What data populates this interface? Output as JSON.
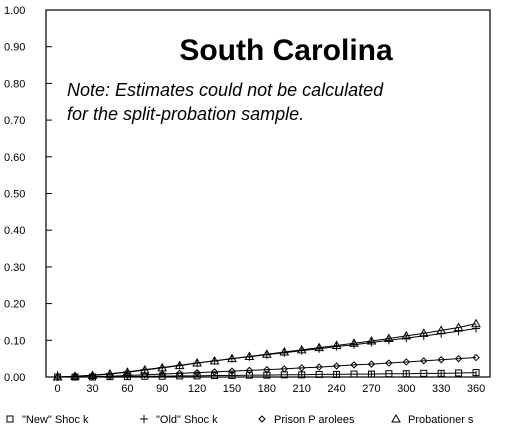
{
  "chart_data": {
    "type": "line",
    "title": "South Carolina",
    "note_lines": [
      "Note: Estimates could not be calculated",
      "for the split-probation sample."
    ],
    "xlabel": "",
    "ylabel": "",
    "xlim": [
      -10,
      372
    ],
    "ylim": [
      0,
      1.0
    ],
    "x_ticks": [
      0,
      30,
      60,
      90,
      120,
      150,
      180,
      210,
      240,
      270,
      300,
      330,
      360
    ],
    "y_ticks": [
      0.0,
      0.1,
      0.2,
      0.3,
      0.4,
      0.5,
      0.6,
      0.7,
      0.8,
      0.9,
      1.0
    ],
    "y_tick_labels": [
      "0.00",
      "0.10",
      "0.20",
      "0.30",
      "0.40",
      "0.50",
      "0.60",
      "0.70",
      "0.80",
      "0.90",
      "1.00"
    ],
    "grid": false,
    "legend_position": "bottom",
    "x": [
      0,
      15,
      30,
      45,
      60,
      75,
      90,
      105,
      120,
      135,
      150,
      165,
      180,
      195,
      210,
      225,
      240,
      255,
      270,
      285,
      300,
      315,
      330,
      345,
      360
    ],
    "series": [
      {
        "name": "\"New\" Shoc k",
        "marker": "square",
        "values": [
          0.0,
          0.0,
          0.0,
          0.001,
          0.001,
          0.002,
          0.002,
          0.003,
          0.003,
          0.004,
          0.004,
          0.005,
          0.005,
          0.006,
          0.006,
          0.007,
          0.007,
          0.008,
          0.008,
          0.009,
          0.009,
          0.01,
          0.01,
          0.011,
          0.012
        ]
      },
      {
        "name": "\"Old\" Shoc k",
        "marker": "plus",
        "values": [
          0.0,
          0.002,
          0.005,
          0.009,
          0.014,
          0.02,
          0.026,
          0.032,
          0.038,
          0.044,
          0.05,
          0.055,
          0.061,
          0.066,
          0.072,
          0.077,
          0.083,
          0.088,
          0.094,
          0.1,
          0.106,
          0.112,
          0.118,
          0.125,
          0.132
        ]
      },
      {
        "name": "Prison P arolees",
        "marker": "diamond",
        "values": [
          0.0,
          0.0,
          0.001,
          0.002,
          0.004,
          0.006,
          0.008,
          0.01,
          0.012,
          0.014,
          0.016,
          0.018,
          0.02,
          0.022,
          0.025,
          0.027,
          0.03,
          0.033,
          0.035,
          0.038,
          0.041,
          0.044,
          0.047,
          0.05,
          0.053
        ]
      },
      {
        "name": "Probationer s",
        "marker": "triangle",
        "values": [
          0.0,
          0.002,
          0.004,
          0.008,
          0.013,
          0.019,
          0.025,
          0.031,
          0.038,
          0.044,
          0.05,
          0.056,
          0.062,
          0.068,
          0.074,
          0.08,
          0.086,
          0.092,
          0.098,
          0.105,
          0.112,
          0.119,
          0.127,
          0.135,
          0.145
        ]
      }
    ]
  }
}
